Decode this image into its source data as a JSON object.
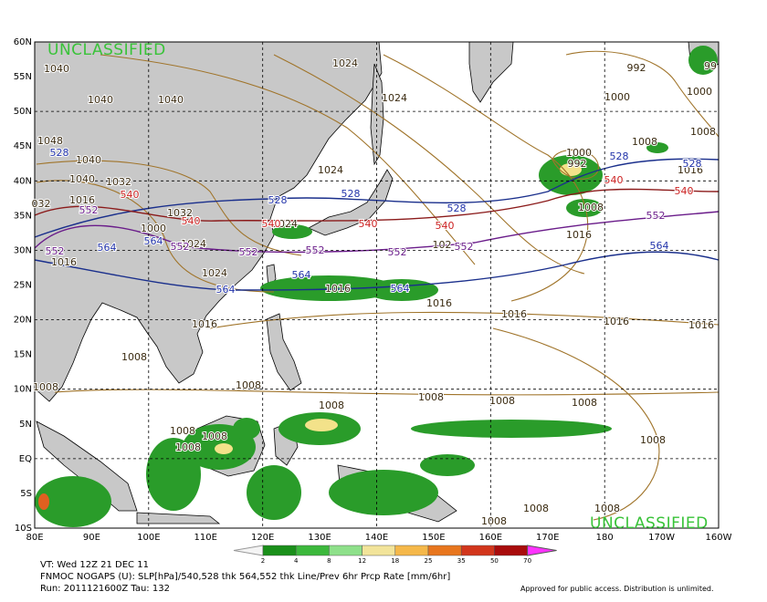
{
  "markings": {
    "top": "UNCLASSIFIED",
    "bottom": "UNCLASSIFIED"
  },
  "lat_labels": [
    "60N",
    "55N",
    "50N",
    "45N",
    "40N",
    "35N",
    "30N",
    "25N",
    "20N",
    "15N",
    "10N",
    "5N",
    "EQ",
    "5S",
    "10S"
  ],
  "lon_labels": [
    "80E",
    "90E",
    "100E",
    "110E",
    "120E",
    "130E",
    "140E",
    "150E",
    "160E",
    "170E",
    "180",
    "170W",
    "160W"
  ],
  "contour_labels": [
    "1040",
    "1040",
    "1040",
    "1048",
    "1040",
    "1040",
    "1032",
    "1016",
    "032",
    "1032",
    "1000",
    "1024",
    "1016",
    "1024",
    "1024",
    "1024",
    "1024",
    "1024",
    "992",
    "1000",
    "1000",
    "1008",
    "1008",
    "1016",
    "1000",
    "992",
    "1008",
    "1016",
    "1016",
    "1016",
    "1016",
    "1016",
    "1016",
    "1016",
    "1008",
    "1008",
    "1008",
    "1008",
    "1008",
    "1008",
    "1008",
    "1008",
    "1008",
    "1008",
    "1008",
    "1008",
    "1008",
    "1008",
    "102",
    "99",
    "528",
    "528",
    "528",
    "528",
    "528",
    "528",
    "540",
    "540",
    "540",
    "540",
    "540",
    "540",
    "540",
    "552",
    "552",
    "552",
    "552",
    "552",
    "552",
    "552",
    "552",
    "564",
    "564",
    "564",
    "564",
    "564",
    "564"
  ],
  "colorbar": {
    "ticks": [
      2,
      4,
      8,
      12,
      18,
      25,
      35,
      50,
      70
    ]
  },
  "footer": {
    "valid_time": "VT: Wed 12Z 21 DEC 11",
    "description": "FNMOC NOGAPS (U): SLP[hPa]/540,528 thk 564,552 thk Line/Prev 6hr Prcp Rate [mm/6hr]",
    "run": "Run: 2011121600Z Tau: 132",
    "notice": "Approved for public access. Distribution is unlimited."
  }
}
